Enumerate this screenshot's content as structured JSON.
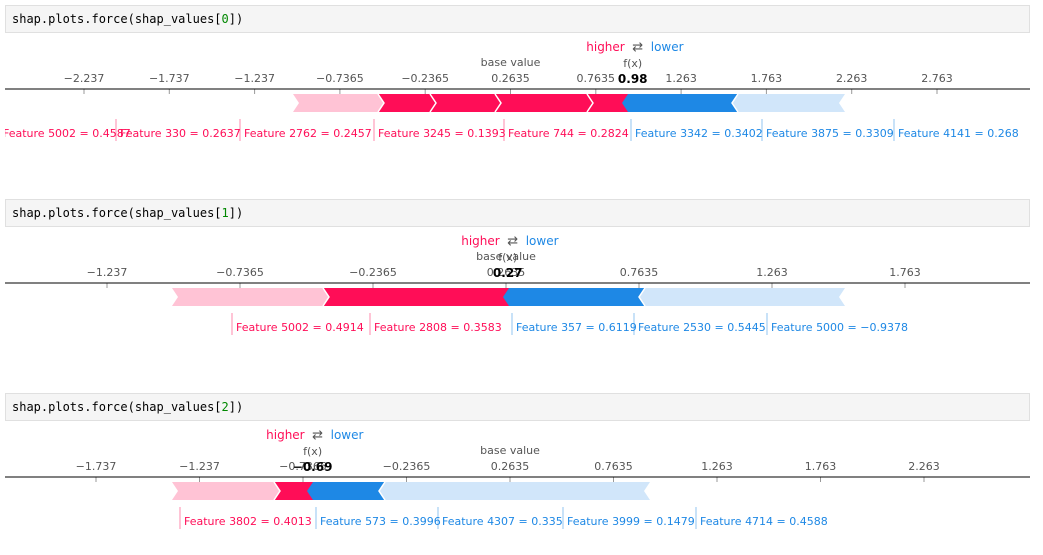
{
  "cells": [
    {
      "code_prefix": "shap.plots.force(shap_values[",
      "code_index": "0",
      "code_suffix": "])",
      "legend": {
        "higher": "higher",
        "arrows": "⇄",
        "lower": "lower"
      },
      "base_value_label": "base value",
      "fx_label": "f(x)",
      "fx_value": "0.98",
      "fx": 0.98,
      "base": 0.2635,
      "ticks": [
        "−2.237",
        "−1.737",
        "−1.237",
        "−0.7365",
        "−0.2365",
        "0.2635",
        "0.7635",
        "1.263",
        "1.763",
        "2.263",
        "2.763"
      ],
      "positive_features": [
        {
          "label": "Feature 5002 = 0.4587"
        },
        {
          "label": "Feature 330 = 0.2637"
        },
        {
          "label": "Feature 2762 = 0.2457"
        },
        {
          "label": "Feature 3245 = 0.1393"
        },
        {
          "label": "Feature 744 = 0.2824"
        }
      ],
      "negative_features": [
        {
          "label": "Feature 3342 = 0.3402"
        },
        {
          "label": "Feature 3875 = 0.3309"
        },
        {
          "label": "Feature 4141 = 0.268"
        }
      ]
    },
    {
      "code_prefix": "shap.plots.force(shap_values[",
      "code_index": "1",
      "code_suffix": "])",
      "legend": {
        "higher": "higher",
        "arrows": "⇄",
        "lower": "lower"
      },
      "base_value_label": "base value",
      "fx_label": "f(x)",
      "fx_value": "0.27",
      "fx": 0.27,
      "base": 0.2635,
      "ticks": [
        "−1.237",
        "−0.7365",
        "−0.2365",
        "0.2635",
        "0.7635",
        "1.263",
        "1.763"
      ],
      "positive_features": [
        {
          "label": "Feature 5002 = 0.4914"
        },
        {
          "label": "Feature 2808 = 0.3583"
        }
      ],
      "negative_features": [
        {
          "label": "Feature 357 = 0.6119"
        },
        {
          "label": "Feature 2530 = 0.5445"
        },
        {
          "label": "Feature 5000 = −0.9378"
        }
      ]
    },
    {
      "code_prefix": "shap.plots.force(shap_values[",
      "code_index": "2",
      "code_suffix": "])",
      "legend": {
        "higher": "higher",
        "arrows": "⇄",
        "lower": "lower"
      },
      "base_value_label": "base value",
      "fx_label": "f(x)",
      "fx_value": "−0.69",
      "fx": -0.69,
      "base": 0.2635,
      "ticks": [
        "−1.737",
        "−1.237",
        "−0.7365",
        "−0.2365",
        "0.2635",
        "0.7635",
        "1.263",
        "1.763",
        "2.263"
      ],
      "positive_features": [
        {
          "label": "Feature 3802 = 0.4013"
        }
      ],
      "negative_features": [
        {
          "label": "Feature 573 = 0.3996"
        },
        {
          "label": "Feature 4307 = 0.335"
        },
        {
          "label": "Feature 3999 = 0.1479"
        },
        {
          "label": "Feature 4714 = 0.4588"
        }
      ]
    }
  ],
  "colors": {
    "positive": "#ff0d57",
    "positive_light": "#ffc3d5",
    "negative": "#1e88e5",
    "negative_light": "#d1e6fa",
    "axis": "#000000",
    "tick_text": "#555555",
    "code_number": "#008800"
  }
}
